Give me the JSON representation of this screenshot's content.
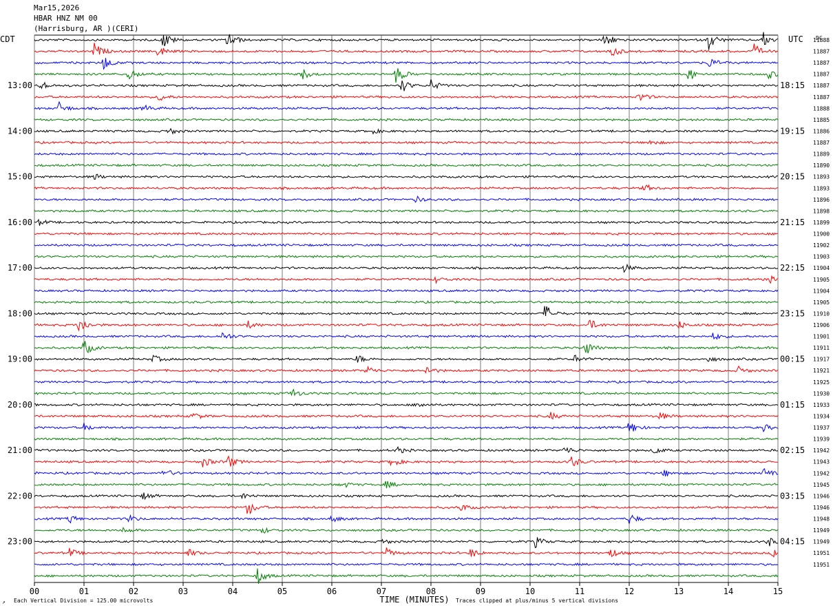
{
  "header": {
    "date": "Mar15,2026",
    "station": "HBAR HNZ NM 00",
    "location": "(Harrisburg, AR )(CERI)"
  },
  "chart_data": {
    "type": "line",
    "plot_kind": "seismogram (helicorder) — 48 horizontal traces, 15 minutes each",
    "xlabel": "TIME (MINUTES)",
    "x_ticks": [
      "00",
      "01",
      "02",
      "03",
      "04",
      "05",
      "06",
      "07",
      "08",
      "09",
      "10",
      "11",
      "12",
      "13",
      "14",
      "15"
    ],
    "xlim": [
      0,
      15
    ],
    "left_axis_title": "CDT",
    "right_axis_title": "UTC",
    "dc_title": "DC",
    "left_time_labels": [
      "13:00",
      "14:00",
      "15:00",
      "16:00",
      "17:00",
      "18:00",
      "19:00",
      "20:00",
      "21:00",
      "22:00",
      "23:00"
    ],
    "right_time_labels": [
      "18:15",
      "19:15",
      "20:15",
      "21:15",
      "22:15",
      "23:15",
      "00:15",
      "01:15",
      "02:15",
      "03:15",
      "04:15"
    ],
    "hour_label_trace_indices": [
      4,
      8,
      12,
      16,
      20,
      24,
      28,
      32,
      36,
      40,
      44
    ],
    "dc_values": [
      "11888",
      "11887",
      "11887",
      "11887",
      "11887",
      "11887",
      "11888",
      "11885",
      "11886",
      "11887",
      "11889",
      "11890",
      "11893",
      "11893",
      "11896",
      "11898",
      "11899",
      "11900",
      "11902",
      "11903",
      "11904",
      "11905",
      "11904",
      "11905",
      "11910",
      "11906",
      "11901",
      "11911",
      "11917",
      "11921",
      "11925",
      "11930",
      "11933",
      "11934",
      "11937",
      "11939",
      "11942",
      "11943",
      "11942",
      "11945",
      "11946",
      "11946",
      "11948",
      "11949",
      "11949",
      "11951",
      "11951"
    ],
    "trace_colors": [
      "#000000",
      "#ff0000",
      "#0000ff",
      "#008000"
    ],
    "grid": true,
    "events": [
      {
        "trace": 0,
        "minute": 2.6,
        "amp": 1.0
      },
      {
        "trace": 0,
        "minute": 3.9,
        "amp": 1.0
      },
      {
        "trace": 0,
        "minute": 11.5,
        "amp": 1.0
      },
      {
        "trace": 0,
        "minute": 13.6,
        "amp": 1.0
      },
      {
        "trace": 0,
        "minute": 14.7,
        "amp": 0.8
      },
      {
        "trace": 1,
        "minute": 1.2,
        "amp": 0.9
      },
      {
        "trace": 1,
        "minute": 2.5,
        "amp": 0.7
      },
      {
        "trace": 1,
        "minute": 11.6,
        "amp": 0.9
      },
      {
        "trace": 1,
        "minute": 14.5,
        "amp": 0.8
      },
      {
        "trace": 2,
        "minute": 1.4,
        "amp": 0.8
      },
      {
        "trace": 2,
        "minute": 13.6,
        "amp": 0.6
      },
      {
        "trace": 3,
        "minute": 1.9,
        "amp": 0.7
      },
      {
        "trace": 3,
        "minute": 5.4,
        "amp": 0.6
      },
      {
        "trace": 3,
        "minute": 7.3,
        "amp": 1.0
      },
      {
        "trace": 3,
        "minute": 13.2,
        "amp": 0.7
      },
      {
        "trace": 3,
        "minute": 14.8,
        "amp": 0.5
      },
      {
        "trace": 4,
        "minute": 0.1,
        "amp": 0.6
      },
      {
        "trace": 4,
        "minute": 7.4,
        "amp": 0.8
      },
      {
        "trace": 4,
        "minute": 8.0,
        "amp": 0.6
      },
      {
        "trace": 5,
        "minute": 2.5,
        "amp": 0.5
      },
      {
        "trace": 5,
        "minute": 12.2,
        "amp": 0.5
      },
      {
        "trace": 6,
        "minute": 0.5,
        "amp": 0.6
      },
      {
        "trace": 6,
        "minute": 2.2,
        "amp": 0.4
      },
      {
        "trace": 8,
        "minute": 2.7,
        "amp": 0.4
      },
      {
        "trace": 8,
        "minute": 6.8,
        "amp": 0.3
      },
      {
        "trace": 9,
        "minute": 12.4,
        "amp": 0.3
      },
      {
        "trace": 12,
        "minute": 1.2,
        "amp": 0.3
      },
      {
        "trace": 13,
        "minute": 12.3,
        "amp": 0.4
      },
      {
        "trace": 14,
        "minute": 7.7,
        "amp": 0.3
      },
      {
        "trace": 16,
        "minute": 0.1,
        "amp": 0.3
      },
      {
        "trace": 20,
        "minute": 11.9,
        "amp": 0.4
      },
      {
        "trace": 21,
        "minute": 14.8,
        "amp": 0.4
      },
      {
        "trace": 21,
        "minute": 8.1,
        "amp": 0.3
      },
      {
        "trace": 24,
        "minute": 10.3,
        "amp": 1.0
      },
      {
        "trace": 25,
        "minute": 0.9,
        "amp": 0.9
      },
      {
        "trace": 25,
        "minute": 11.2,
        "amp": 0.6
      },
      {
        "trace": 25,
        "minute": 13.0,
        "amp": 0.4
      },
      {
        "trace": 25,
        "minute": 4.3,
        "amp": 0.4
      },
      {
        "trace": 26,
        "minute": 3.8,
        "amp": 0.5
      },
      {
        "trace": 26,
        "minute": 13.7,
        "amp": 0.4
      },
      {
        "trace": 27,
        "minute": 1.0,
        "amp": 0.9
      },
      {
        "trace": 27,
        "minute": 11.1,
        "amp": 0.9
      },
      {
        "trace": 28,
        "minute": 2.4,
        "amp": 0.4
      },
      {
        "trace": 28,
        "minute": 6.5,
        "amp": 0.5
      },
      {
        "trace": 28,
        "minute": 10.9,
        "amp": 0.4
      },
      {
        "trace": 28,
        "minute": 13.6,
        "amp": 0.3
      },
      {
        "trace": 29,
        "minute": 6.7,
        "amp": 0.5
      },
      {
        "trace": 29,
        "minute": 7.9,
        "amp": 0.5
      },
      {
        "trace": 29,
        "minute": 14.2,
        "amp": 0.4
      },
      {
        "trace": 31,
        "minute": 5.2,
        "amp": 0.5
      },
      {
        "trace": 32,
        "minute": 7.7,
        "amp": 0.4
      },
      {
        "trace": 33,
        "minute": 3.2,
        "amp": 0.4
      },
      {
        "trace": 33,
        "minute": 10.4,
        "amp": 0.4
      },
      {
        "trace": 33,
        "minute": 12.6,
        "amp": 0.4
      },
      {
        "trace": 34,
        "minute": 1.0,
        "amp": 0.4
      },
      {
        "trace": 34,
        "minute": 12.0,
        "amp": 0.8
      },
      {
        "trace": 34,
        "minute": 14.7,
        "amp": 0.4
      },
      {
        "trace": 36,
        "minute": 7.3,
        "amp": 0.4
      },
      {
        "trace": 36,
        "minute": 10.7,
        "amp": 0.5
      },
      {
        "trace": 36,
        "minute": 12.5,
        "amp": 0.4
      },
      {
        "trace": 37,
        "minute": 3.9,
        "amp": 0.7
      },
      {
        "trace": 37,
        "minute": 3.4,
        "amp": 0.6
      },
      {
        "trace": 37,
        "minute": 7.2,
        "amp": 0.6
      },
      {
        "trace": 37,
        "minute": 10.8,
        "amp": 0.8
      },
      {
        "trace": 38,
        "minute": 2.6,
        "amp": 0.5
      },
      {
        "trace": 38,
        "minute": 12.7,
        "amp": 0.4
      },
      {
        "trace": 38,
        "minute": 14.7,
        "amp": 0.5
      },
      {
        "trace": 39,
        "minute": 6.2,
        "amp": 0.4
      },
      {
        "trace": 39,
        "minute": 7.1,
        "amp": 0.4
      },
      {
        "trace": 40,
        "minute": 2.2,
        "amp": 0.4
      },
      {
        "trace": 40,
        "minute": 4.2,
        "amp": 0.3
      },
      {
        "trace": 41,
        "minute": 4.3,
        "amp": 0.9
      },
      {
        "trace": 41,
        "minute": 8.6,
        "amp": 0.4
      },
      {
        "trace": 42,
        "minute": 0.7,
        "amp": 0.5
      },
      {
        "trace": 42,
        "minute": 1.9,
        "amp": 0.4
      },
      {
        "trace": 42,
        "minute": 12.0,
        "amp": 0.6
      },
      {
        "trace": 42,
        "minute": 6.0,
        "amp": 0.4
      },
      {
        "trace": 43,
        "minute": 1.8,
        "amp": 0.3
      },
      {
        "trace": 43,
        "minute": 4.6,
        "amp": 0.3
      },
      {
        "trace": 44,
        "minute": 10.1,
        "amp": 0.6
      },
      {
        "trace": 44,
        "minute": 14.8,
        "amp": 0.5
      },
      {
        "trace": 44,
        "minute": 7.0,
        "amp": 0.3
      },
      {
        "trace": 45,
        "minute": 0.7,
        "amp": 0.5
      },
      {
        "trace": 45,
        "minute": 3.1,
        "amp": 0.4
      },
      {
        "trace": 45,
        "minute": 7.1,
        "amp": 0.5
      },
      {
        "trace": 45,
        "minute": 8.8,
        "amp": 0.5
      },
      {
        "trace": 45,
        "minute": 11.6,
        "amp": 0.6
      },
      {
        "trace": 45,
        "minute": 14.9,
        "amp": 0.5
      },
      {
        "trace": 47,
        "minute": 4.5,
        "amp": 0.9
      }
    ]
  },
  "footer": {
    "scale_note": "Each Vertical Division =  125.00 microvolts",
    "clip_note": "Traces clipped at plus/minus 5 vertical divisions"
  }
}
